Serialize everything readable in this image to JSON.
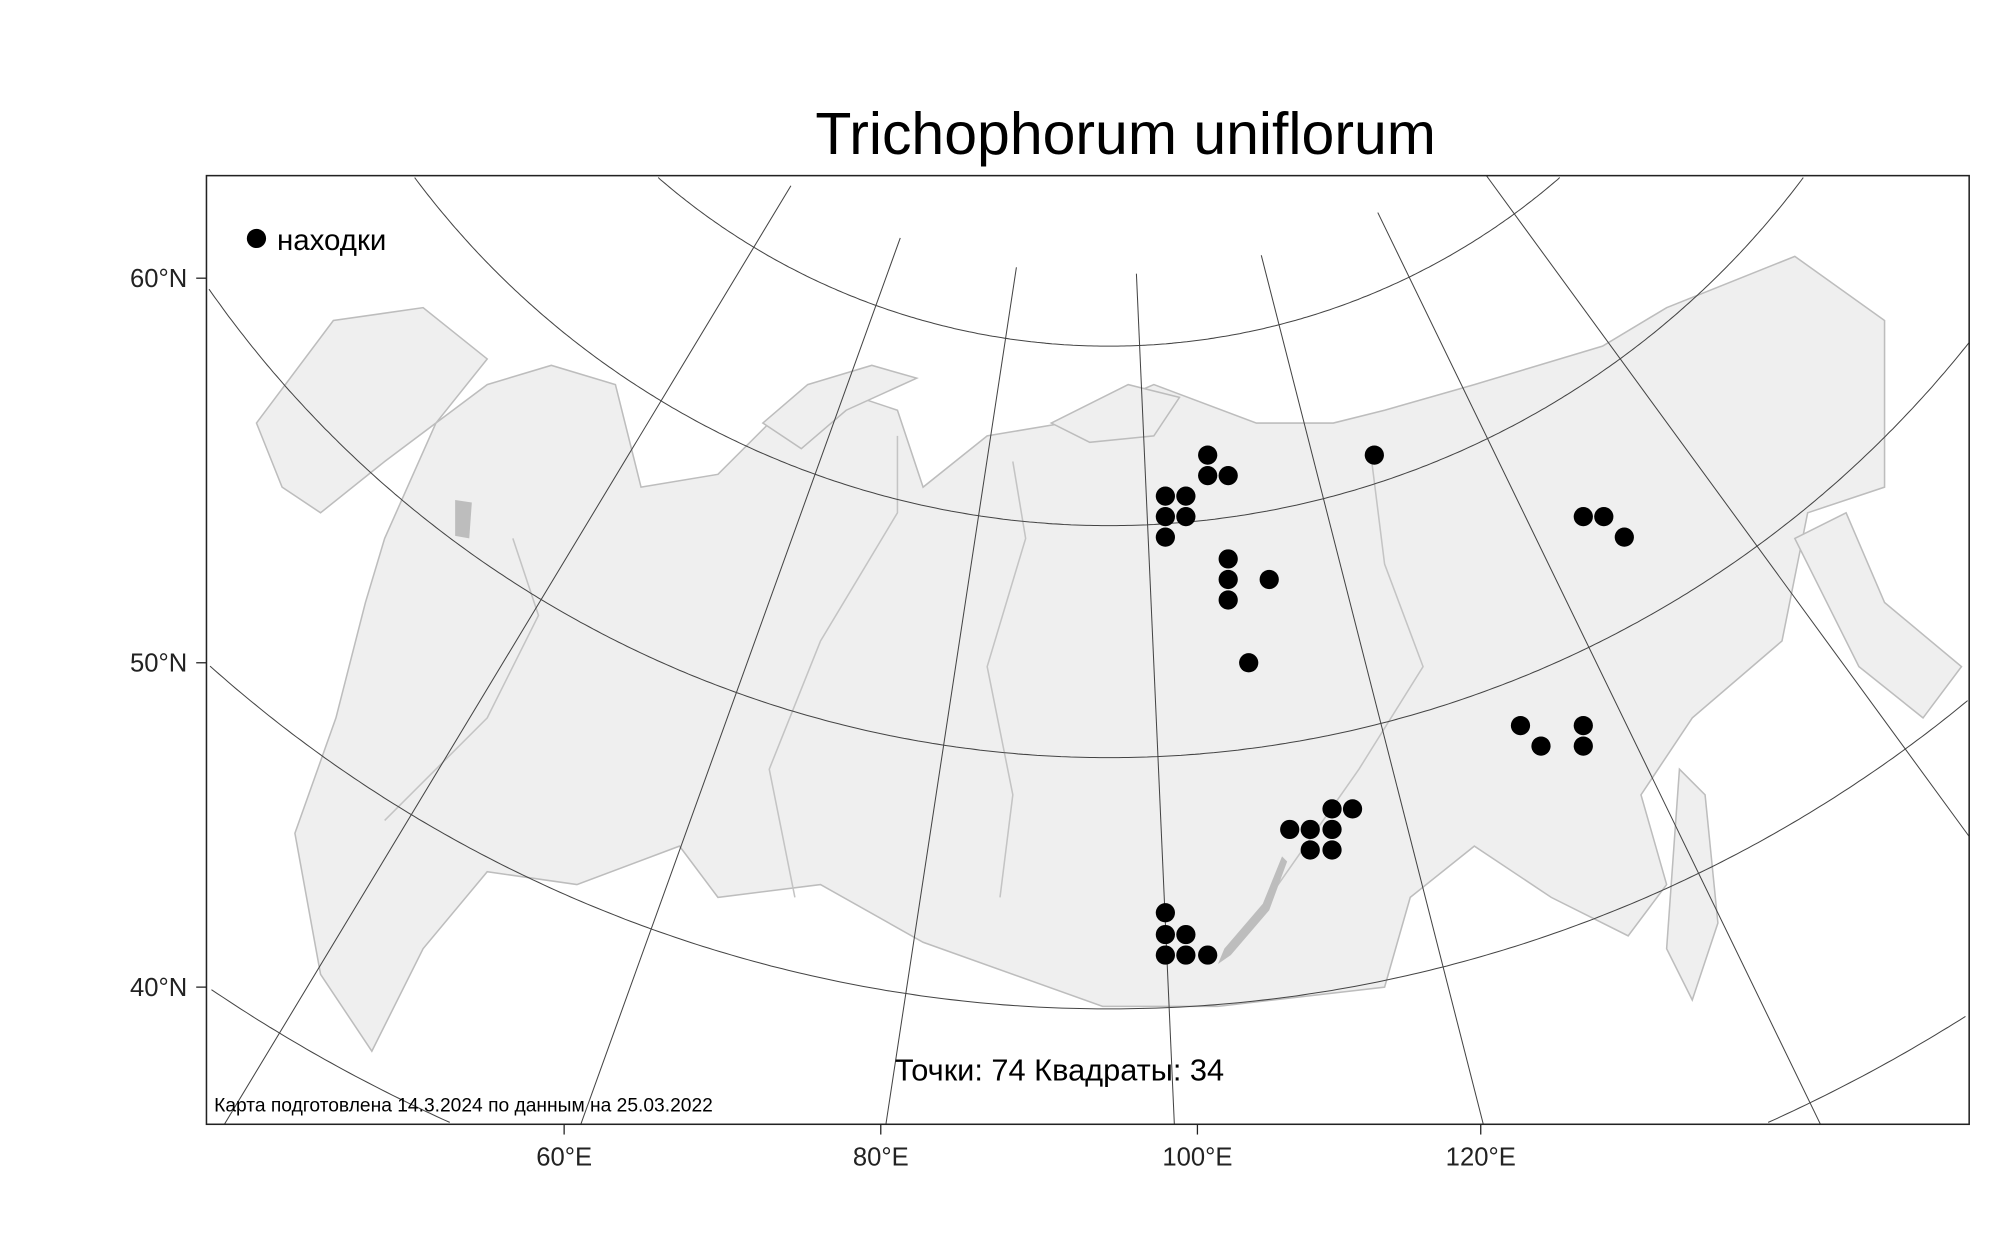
{
  "title": "Trichophorum uniflorum",
  "legend": {
    "label": "находки",
    "marker": "filled-circle",
    "marker_color": "#000000"
  },
  "summary": "Точки: 74 Квадраты: 34",
  "footer": "Карта подготовлена 14.3.2024 по данным на 25.03.2022",
  "lat_labels": [
    "60°N",
    "50°N",
    "40°N"
  ],
  "lon_labels": [
    "60°E",
    "80°E",
    "100°E",
    "120°E"
  ],
  "colors": {
    "land": "#efefef",
    "border": "#bdbdbd",
    "water_bodies": "#bdbdbd",
    "points": "#000000",
    "graticule": "#444444"
  }
}
